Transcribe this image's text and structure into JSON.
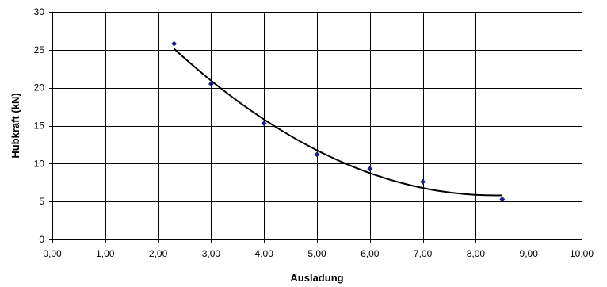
{
  "chart_data": {
    "type": "scatter",
    "xlabel": "Ausladung",
    "ylabel": "Hubkraft (kN)",
    "xlim": [
      0,
      10
    ],
    "ylim": [
      0,
      30
    ],
    "x_ticks": [
      "0,00",
      "1,00",
      "2,00",
      "3,00",
      "4,00",
      "5,00",
      "6,00",
      "7,00",
      "8,00",
      "9,00",
      "10,00"
    ],
    "y_ticks": [
      "0",
      "5",
      "10",
      "15",
      "20",
      "25",
      "30"
    ],
    "grid": true,
    "legend": "none",
    "series": [
      {
        "marker": "diamond",
        "color": "#1c1c8c",
        "x": [
          2.3,
          3.0,
          4.0,
          5.0,
          6.0,
          7.0,
          8.5
        ],
        "y": [
          25.8,
          20.5,
          15.3,
          11.2,
          9.3,
          7.6,
          5.3
        ]
      }
    ],
    "trendline": {
      "type": "polynomial",
      "order": 2,
      "color": "#000000",
      "x_range": [
        2.3,
        8.5
      ]
    }
  }
}
